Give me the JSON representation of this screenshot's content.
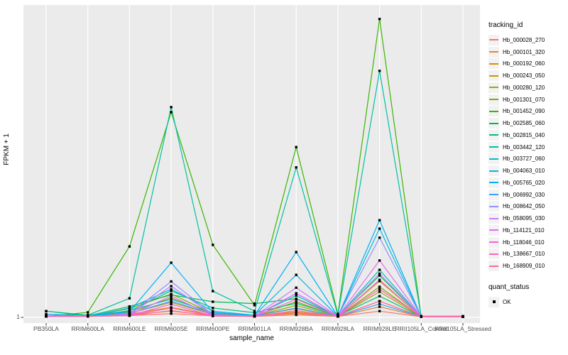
{
  "chart_data": {
    "type": "line",
    "title": "",
    "xlabel": "sample_name",
    "ylabel": "FPKM + 1",
    "y_axis": {
      "tick_labels": [
        "1"
      ],
      "note": "only the value 1 is labeled, at the bottom gridline of the panel"
    },
    "categories": [
      "PB350LA",
      "RRIM600LA",
      "RRIM600LE",
      "RRIM600SE",
      "RRIM600PE",
      "RRIM901LA",
      "RRIM928BA",
      "RRIM928LA",
      "RRIM928LE",
      "RRII105LA_Control",
      "RRII105LA_Stressed"
    ],
    "series_note": "values_h are estimated fractions of panel height above the y=1 baseline (pixel-read; the axis shows no numeric ticks besides 1). Peaks occur at RRIM600SE, RRIM928BA and RRIM928LE.",
    "series": [
      {
        "name": "Hb_000028_270",
        "color": "#F8766D",
        "values_h": [
          0.003,
          0.003,
          0.006,
          0.012,
          0.005,
          0.003,
          0.008,
          0.003,
          0.02,
          0.002,
          0.002
        ]
      },
      {
        "name": "Hb_000101_320",
        "color": "#EA8331",
        "values_h": [
          0.003,
          0.003,
          0.008,
          0.02,
          0.006,
          0.004,
          0.012,
          0.003,
          0.034,
          0.002,
          0.002
        ]
      },
      {
        "name": "Hb_000192_060",
        "color": "#D89000",
        "values_h": [
          0.003,
          0.003,
          0.01,
          0.032,
          0.007,
          0.004,
          0.018,
          0.003,
          0.052,
          0.002,
          0.002
        ]
      },
      {
        "name": "Hb_000243_050",
        "color": "#C09B00",
        "values_h": [
          0.003,
          0.003,
          0.013,
          0.048,
          0.009,
          0.005,
          0.028,
          0.003,
          0.116,
          0.002,
          0.002
        ]
      },
      {
        "name": "Hb_000280_120",
        "color": "#A3A500",
        "values_h": [
          0.003,
          0.003,
          0.016,
          0.062,
          0.01,
          0.005,
          0.038,
          0.003,
          0.082,
          0.002,
          0.002
        ]
      },
      {
        "name": "Hb_001301_070",
        "color": "#7CAE00",
        "values_h": [
          0.003,
          0.003,
          0.028,
          0.075,
          0.012,
          0.005,
          0.05,
          0.003,
          0.098,
          0.002,
          0.002
        ]
      },
      {
        "name": "Hb_001452_090",
        "color": "#39B600",
        "values_h": [
          0.003,
          0.016,
          0.227,
          0.657,
          0.232,
          0.039,
          0.545,
          0.011,
          0.955,
          0.002,
          0.002
        ]
      },
      {
        "name": "Hb_002585_060",
        "color": "#00BB4E",
        "values_h": [
          0.02,
          0.005,
          0.035,
          0.072,
          0.05,
          0.044,
          0.06,
          0.005,
          0.134,
          0.002,
          0.002
        ]
      },
      {
        "name": "Hb_002815_040",
        "color": "#00BF7D",
        "values_h": [
          0.02,
          0.007,
          0.02,
          0.085,
          0.03,
          0.015,
          0.045,
          0.005,
          0.068,
          0.002,
          0.002
        ]
      },
      {
        "name": "Hb_003442_120",
        "color": "#00C1A3",
        "values_h": [
          0.01,
          0.007,
          0.061,
          0.673,
          0.084,
          0.02,
          0.48,
          0.007,
          0.789,
          0.002,
          0.002
        ]
      },
      {
        "name": "Hb_003727_060",
        "color": "#00BFC4",
        "values_h": [
          0.003,
          0.003,
          0.022,
          0.058,
          0.015,
          0.006,
          0.07,
          0.003,
          0.152,
          0.002,
          0.002
        ]
      },
      {
        "name": "Hb_004063_010",
        "color": "#00BADE",
        "values_h": [
          0.003,
          0.003,
          0.03,
          0.09,
          0.02,
          0.007,
          0.136,
          0.003,
          0.284,
          0.002,
          0.002
        ]
      },
      {
        "name": "Hb_005765_020",
        "color": "#00B0F6",
        "values_h": [
          0.003,
          0.003,
          0.018,
          0.175,
          0.016,
          0.006,
          0.209,
          0.003,
          0.311,
          0.002,
          0.002
        ]
      },
      {
        "name": "Hb_006992_030",
        "color": "#35A2FF",
        "values_h": [
          0.01,
          0.003,
          0.012,
          0.052,
          0.01,
          0.005,
          0.03,
          0.003,
          0.043,
          0.002,
          0.002
        ]
      },
      {
        "name": "Hb_008642_050",
        "color": "#9590FF",
        "values_h": [
          0.003,
          0.003,
          0.011,
          0.115,
          0.009,
          0.004,
          0.077,
          0.003,
          0.255,
          0.002,
          0.002
        ]
      },
      {
        "name": "Hb_058095_030",
        "color": "#C77CFF",
        "values_h": [
          0.003,
          0.003,
          0.009,
          0.1,
          0.008,
          0.004,
          0.095,
          0.003,
          0.14,
          0.002,
          0.002
        ]
      },
      {
        "name": "Hb_114121_010",
        "color": "#E76BF3",
        "values_h": [
          0.003,
          0.003,
          0.008,
          0.068,
          0.006,
          0.003,
          0.077,
          0.003,
          0.182,
          0.002,
          0.002
        ]
      },
      {
        "name": "Hb_118046_010",
        "color": "#FA62DB",
        "values_h": [
          0.003,
          0.003,
          0.006,
          0.042,
          0.005,
          0.003,
          0.058,
          0.003,
          0.12,
          0.002,
          0.002
        ]
      },
      {
        "name": "Hb_138667_010",
        "color": "#FF62BC",
        "values_h": [
          0.005,
          0.004,
          0.006,
          0.03,
          0.005,
          0.003,
          0.022,
          0.003,
          0.09,
          0.004,
          0.004
        ]
      },
      {
        "name": "Hb_168909_010",
        "color": "#FF6A98",
        "values_h": [
          0.005,
          0.004,
          0.005,
          0.022,
          0.004,
          0.003,
          0.015,
          0.003,
          0.052,
          0.002,
          0.002
        ]
      }
    ],
    "legend": {
      "position": "right",
      "tracking_title": "tracking_id",
      "quant_title": "quant_status",
      "quant_items": [
        {
          "label": "OK",
          "marker": "black-square"
        }
      ]
    },
    "style": {
      "panel_bg": "#EBEBEB",
      "grid_color": "#FFFFFF",
      "marker_color": "#000000",
      "legend_key_bg": "#F2F2F2",
      "tick_text_color": "#4D4D4D"
    },
    "layout_hints": {
      "grid": "major vertical per category + horizontal at y=1",
      "markers": "small black squares at every data point (quant_status OK)"
    }
  }
}
